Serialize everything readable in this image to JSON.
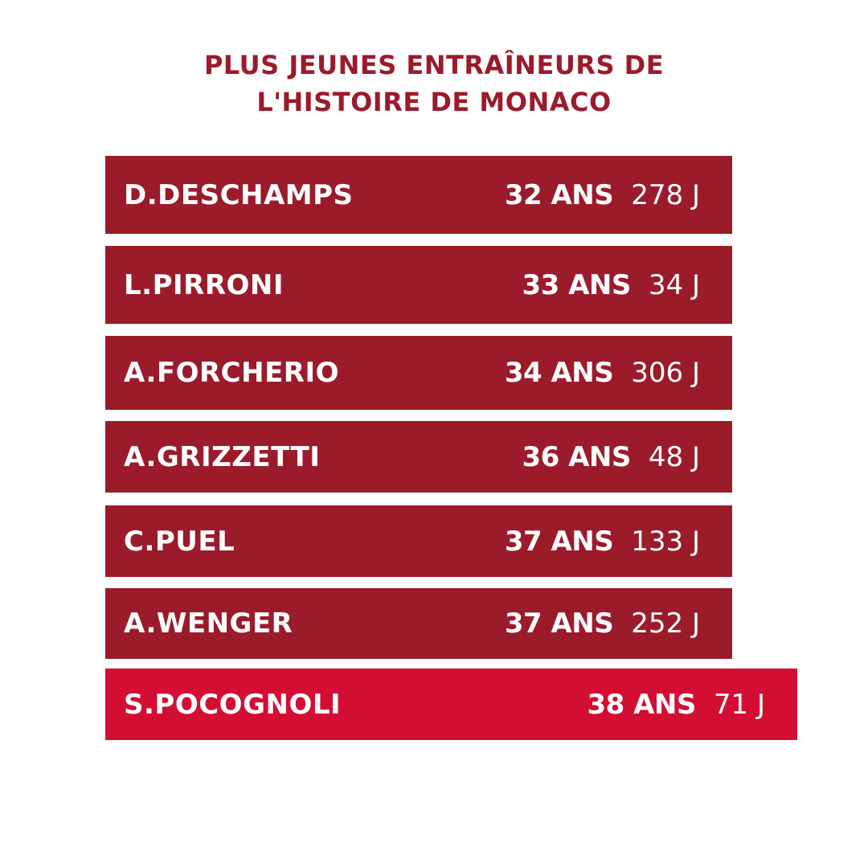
{
  "title_lines": [
    "PLUS JEUNES ENTRAÎNEURS DE",
    "L'HISTOIRE DE MONACO"
  ],
  "colors": {
    "title": "#9b1b2b",
    "bar": "#9b1b2b",
    "highlight": "#d40d33",
    "text": "#ffffff"
  },
  "chart_data": {
    "type": "bar",
    "title": "PLUS JEUNES ENTRAÎNEURS DE L'HISTOIRE DE MONACO",
    "categories": [
      "D.DESCHAMPS",
      "L.PIRRONI",
      "A.FORCHERIO",
      "A.GRIZZETTI",
      "C.PUEL",
      "A.WENGER",
      "S.POCOGNOLI"
    ],
    "years": [
      32,
      33,
      34,
      36,
      37,
      37,
      38
    ],
    "days": [
      278,
      34,
      306,
      48,
      133,
      252,
      71
    ],
    "years_labels": [
      "32 ANS",
      "33 ANS",
      "34 ANS",
      "36 ANS",
      "37 ANS",
      "37 ANS",
      "38 ANS"
    ],
    "days_labels": [
      "278 J",
      "34 J",
      "306 J",
      "48 J",
      "133 J",
      "252 J",
      "71 J"
    ],
    "highlighted_index": 6
  }
}
